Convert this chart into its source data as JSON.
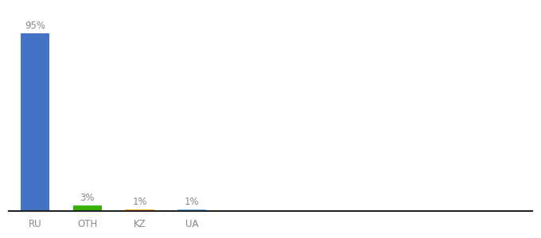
{
  "categories": [
    "RU",
    "OTH",
    "KZ",
    "UA"
  ],
  "values": [
    95,
    3,
    1,
    1
  ],
  "bar_colors": [
    "#4472C4",
    "#38B000",
    "#FFA726",
    "#64B5F6"
  ],
  "labels": [
    "95%",
    "3%",
    "1%",
    "1%"
  ],
  "ylim": [
    0,
    108
  ],
  "background_color": "#ffffff",
  "label_fontsize": 8.5,
  "tick_fontsize": 8.5,
  "bar_width": 0.55,
  "label_color": "#888888",
  "tick_color": "#888888",
  "spine_color": "#222222"
}
